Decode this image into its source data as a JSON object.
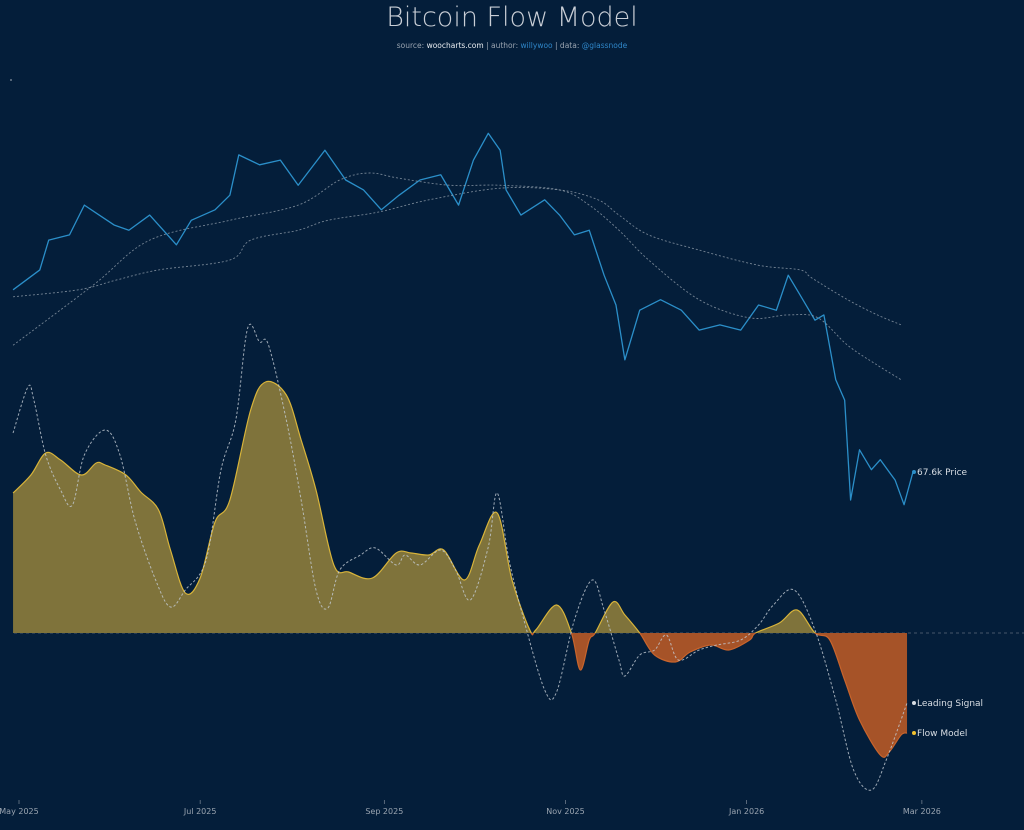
{
  "title": "Bitcoin Flow Model",
  "subtitle": {
    "source_prefix": "source: ",
    "source": "woocharts.com",
    "sep1": " | author: ",
    "author": "willywoo",
    "sep2": " | data: ",
    "data": "@glassnode"
  },
  "colors": {
    "background": "#041e3a",
    "price": "#2b8fc9",
    "ma": "#9aa5b1",
    "flow_positive_fill": "#7f733b",
    "flow_positive_line": "#d8b43a",
    "flow_negative_fill": "#a65328",
    "flow_negative_line": "#c8642c",
    "leading_signal": "#c4ccd4"
  },
  "chart_data": {
    "type": "line",
    "title": "Bitcoin Flow Model",
    "x_type": "date",
    "x_ticks": [
      {
        "date": "2025-05-01",
        "label": "May 2025"
      },
      {
        "date": "2025-07-01",
        "label": "Jul 2025"
      },
      {
        "date": "2025-09-01",
        "label": "Sep 2025"
      },
      {
        "date": "2025-11-01",
        "label": "Nov 2025"
      },
      {
        "date": "2026-01-01",
        "label": "Jan 2026"
      },
      {
        "date": "2026-03-01",
        "label": "Mar 2026"
      }
    ],
    "grid": false,
    "legend": "end-of-line labels, right",
    "price_panel": {
      "unit": "k USD",
      "series": [
        {
          "name": "Price",
          "end_label": "67.6k Price",
          "style": "solid",
          "points": [
            [
              "2025-04-29",
              98.8
            ],
            [
              "2025-05-08",
              102.2
            ],
            [
              "2025-05-11",
              107.3
            ],
            [
              "2025-05-18",
              108.2
            ],
            [
              "2025-05-23",
              113.3
            ],
            [
              "2025-05-28",
              111.6
            ],
            [
              "2025-06-02",
              109.9
            ],
            [
              "2025-06-07",
              109.0
            ],
            [
              "2025-06-14",
              111.6
            ],
            [
              "2025-06-23",
              106.5
            ],
            [
              "2025-06-28",
              110.7
            ],
            [
              "2025-07-06",
              112.5
            ],
            [
              "2025-07-11",
              115.0
            ],
            [
              "2025-07-14",
              121.9
            ],
            [
              "2025-07-21",
              120.2
            ],
            [
              "2025-07-28",
              121.0
            ],
            [
              "2025-08-03",
              116.7
            ],
            [
              "2025-08-12",
              122.7
            ],
            [
              "2025-08-19",
              117.6
            ],
            [
              "2025-08-25",
              115.9
            ],
            [
              "2025-08-31",
              112.5
            ],
            [
              "2025-09-06",
              115.0
            ],
            [
              "2025-09-13",
              117.6
            ],
            [
              "2025-09-20",
              118.5
            ],
            [
              "2025-09-26",
              113.3
            ],
            [
              "2025-10-01",
              121.0
            ],
            [
              "2025-10-06",
              125.6
            ],
            [
              "2025-10-10",
              122.7
            ],
            [
              "2025-10-12",
              115.9
            ],
            [
              "2025-10-17",
              111.6
            ],
            [
              "2025-10-25",
              114.2
            ],
            [
              "2025-10-30",
              111.6
            ],
            [
              "2025-11-04",
              108.2
            ],
            [
              "2025-11-09",
              109.0
            ],
            [
              "2025-11-14",
              101.3
            ],
            [
              "2025-11-18",
              96.2
            ],
            [
              "2025-11-21",
              86.8
            ],
            [
              "2025-11-26",
              95.3
            ],
            [
              "2025-12-03",
              97.1
            ],
            [
              "2025-12-10",
              95.3
            ],
            [
              "2025-12-16",
              91.9
            ],
            [
              "2025-12-23",
              92.8
            ],
            [
              "2025-12-30",
              91.9
            ],
            [
              "2026-01-05",
              96.2
            ],
            [
              "2026-01-11",
              95.3
            ],
            [
              "2026-01-15",
              101.3
            ],
            [
              "2026-01-19",
              97.9
            ],
            [
              "2026-01-24",
              93.6
            ],
            [
              "2026-01-27",
              94.5
            ],
            [
              "2026-01-31",
              83.4
            ],
            [
              "2026-02-03",
              79.9
            ],
            [
              "2026-02-05",
              62.8
            ],
            [
              "2026-02-08",
              71.4
            ],
            [
              "2026-02-12",
              68.0
            ],
            [
              "2026-02-15",
              69.7
            ],
            [
              "2026-02-20",
              66.2
            ],
            [
              "2026-02-23",
              62.0
            ],
            [
              "2026-02-26",
              67.6
            ]
          ]
        },
        {
          "style": "dotted",
          "points": [
            [
              "2025-04-29",
              89.3
            ],
            [
              "2025-05-26",
              99.6
            ],
            [
              "2025-06-14",
              107.3
            ],
            [
              "2025-07-11",
              110.7
            ],
            [
              "2025-08-03",
              113.3
            ],
            [
              "2025-08-17",
              117.6
            ],
            [
              "2025-08-27",
              118.8
            ],
            [
              "2025-09-06",
              117.9
            ],
            [
              "2025-09-23",
              116.7
            ],
            [
              "2025-10-10",
              116.7
            ],
            [
              "2025-10-30",
              115.9
            ],
            [
              "2025-11-09",
              113.3
            ],
            [
              "2025-11-19",
              109.0
            ],
            [
              "2025-11-29",
              103.9
            ],
            [
              "2025-12-16",
              97.1
            ],
            [
              "2026-01-02",
              94.0
            ],
            [
              "2026-01-15",
              94.5
            ],
            [
              "2026-01-25",
              94.0
            ],
            [
              "2026-02-04",
              89.3
            ],
            [
              "2026-02-14",
              85.9
            ],
            [
              "2026-02-22",
              83.4
            ]
          ]
        },
        {
          "style": "dotted",
          "points": [
            [
              "2025-04-29",
              97.6
            ],
            [
              "2025-05-21",
              98.8
            ],
            [
              "2025-06-03",
              100.5
            ],
            [
              "2025-06-17",
              102.2
            ],
            [
              "2025-07-11",
              103.9
            ],
            [
              "2025-07-18",
              107.3
            ],
            [
              "2025-08-03",
              109.0
            ],
            [
              "2025-08-13",
              110.7
            ],
            [
              "2025-08-30",
              112.1
            ],
            [
              "2025-09-16",
              114.2
            ],
            [
              "2025-10-10",
              116.2
            ],
            [
              "2025-10-30",
              115.9
            ],
            [
              "2025-11-12",
              114.2
            ],
            [
              "2025-11-19",
              111.6
            ],
            [
              "2025-11-29",
              108.2
            ],
            [
              "2025-12-16",
              105.6
            ],
            [
              "2026-01-05",
              103.0
            ],
            [
              "2026-01-19",
              102.2
            ],
            [
              "2026-01-23",
              100.8
            ],
            [
              "2026-02-04",
              97.1
            ],
            [
              "2026-02-14",
              94.5
            ],
            [
              "2026-02-22",
              92.8
            ]
          ]
        }
      ]
    },
    "flow_panel": {
      "baseline": 0,
      "series": [
        {
          "name": "Flow Model",
          "end_label": "Flow Model",
          "style": "area",
          "points": [
            [
              "2025-04-29",
              1.4
            ],
            [
              "2025-05-05",
              1.58
            ],
            [
              "2025-05-10",
              1.8
            ],
            [
              "2025-05-15",
              1.73
            ],
            [
              "2025-05-22",
              1.58
            ],
            [
              "2025-05-27",
              1.7
            ],
            [
              "2025-05-30",
              1.68
            ],
            [
              "2025-06-06",
              1.58
            ],
            [
              "2025-06-11",
              1.41
            ],
            [
              "2025-06-17",
              1.23
            ],
            [
              "2025-06-21",
              0.83
            ],
            [
              "2025-06-26",
              0.4
            ],
            [
              "2025-07-01",
              0.55
            ],
            [
              "2025-07-06",
              1.11
            ],
            [
              "2025-07-11",
              1.33
            ],
            [
              "2025-07-18",
              2.23
            ],
            [
              "2025-07-23",
              2.51
            ],
            [
              "2025-07-30",
              2.38
            ],
            [
              "2025-08-04",
              1.93
            ],
            [
              "2025-08-09",
              1.43
            ],
            [
              "2025-08-15",
              0.68
            ],
            [
              "2025-08-20",
              0.61
            ],
            [
              "2025-08-28",
              0.55
            ],
            [
              "2025-09-05",
              0.8
            ],
            [
              "2025-09-10",
              0.8
            ],
            [
              "2025-09-16",
              0.78
            ],
            [
              "2025-09-21",
              0.83
            ],
            [
              "2025-09-28",
              0.53
            ],
            [
              "2025-10-03",
              0.88
            ],
            [
              "2025-10-09",
              1.2
            ],
            [
              "2025-10-14",
              0.53
            ],
            [
              "2025-10-20",
              0.03
            ],
            [
              "2025-10-22",
              0.03
            ],
            [
              "2025-10-29",
              0.28
            ],
            [
              "2025-11-03",
              0.0
            ],
            [
              "2025-11-06",
              -0.37
            ],
            [
              "2025-11-09",
              -0.07
            ],
            [
              "2025-11-11",
              0.0
            ],
            [
              "2025-11-17",
              0.31
            ],
            [
              "2025-11-21",
              0.18
            ],
            [
              "2025-11-26",
              0.0
            ],
            [
              "2025-12-01",
              -0.22
            ],
            [
              "2025-12-08",
              -0.29
            ],
            [
              "2025-12-13",
              -0.19
            ],
            [
              "2025-12-20",
              -0.12
            ],
            [
              "2025-12-26",
              -0.17
            ],
            [
              "2026-01-02",
              -0.07
            ],
            [
              "2026-01-04",
              0.0
            ],
            [
              "2026-01-12",
              0.1
            ],
            [
              "2026-01-18",
              0.23
            ],
            [
              "2026-01-24",
              0.0
            ],
            [
              "2026-01-29",
              -0.07
            ],
            [
              "2026-02-03",
              -0.47
            ],
            [
              "2026-02-08",
              -0.87
            ],
            [
              "2026-02-15",
              -1.22
            ],
            [
              "2026-02-18",
              -1.19
            ],
            [
              "2026-02-22",
              -1.02
            ],
            [
              "2026-02-24",
              -1.0
            ]
          ]
        },
        {
          "name": "Leading Signal",
          "end_label": "Leading Signal",
          "style": "dashed",
          "points": [
            [
              "2025-04-29",
              2.0
            ],
            [
              "2025-05-04",
              2.46
            ],
            [
              "2025-05-06",
              2.33
            ],
            [
              "2025-05-10",
              1.78
            ],
            [
              "2025-05-15",
              1.43
            ],
            [
              "2025-05-19",
              1.28
            ],
            [
              "2025-05-23",
              1.78
            ],
            [
              "2025-05-30",
              2.03
            ],
            [
              "2025-06-04",
              1.78
            ],
            [
              "2025-06-09",
              1.13
            ],
            [
              "2025-06-16",
              0.53
            ],
            [
              "2025-06-21",
              0.26
            ],
            [
              "2025-06-26",
              0.43
            ],
            [
              "2025-07-03",
              0.73
            ],
            [
              "2025-07-08",
              1.63
            ],
            [
              "2025-07-13",
              2.13
            ],
            [
              "2025-07-17",
              3.05
            ],
            [
              "2025-07-21",
              2.91
            ],
            [
              "2025-07-24",
              2.88
            ],
            [
              "2025-07-30",
              2.13
            ],
            [
              "2025-08-04",
              1.33
            ],
            [
              "2025-08-09",
              0.43
            ],
            [
              "2025-08-13",
              0.25
            ],
            [
              "2025-08-17",
              0.63
            ],
            [
              "2025-08-24",
              0.78
            ],
            [
              "2025-08-29",
              0.85
            ],
            [
              "2025-09-05",
              0.68
            ],
            [
              "2025-09-08",
              0.78
            ],
            [
              "2025-09-13",
              0.68
            ],
            [
              "2025-09-20",
              0.83
            ],
            [
              "2025-09-25",
              0.63
            ],
            [
              "2025-09-30",
              0.33
            ],
            [
              "2025-10-06",
              0.86
            ],
            [
              "2025-10-09",
              1.4
            ],
            [
              "2025-10-13",
              0.73
            ],
            [
              "2025-10-18",
              0.13
            ],
            [
              "2025-10-25",
              -0.57
            ],
            [
              "2025-10-29",
              -0.59
            ],
            [
              "2025-11-04",
              0.13
            ],
            [
              "2025-11-10",
              0.53
            ],
            [
              "2025-11-14",
              0.23
            ],
            [
              "2025-11-19",
              -0.27
            ],
            [
              "2025-11-21",
              -0.43
            ],
            [
              "2025-11-26",
              -0.22
            ],
            [
              "2025-12-01",
              -0.17
            ],
            [
              "2025-12-05",
              -0.02
            ],
            [
              "2025-12-09",
              -0.27
            ],
            [
              "2025-12-16",
              -0.17
            ],
            [
              "2025-12-22",
              -0.12
            ],
            [
              "2025-12-30",
              -0.07
            ],
            [
              "2026-01-05",
              0.08
            ],
            [
              "2026-01-10",
              0.28
            ],
            [
              "2026-01-17",
              0.43
            ],
            [
              "2026-01-24",
              0.03
            ],
            [
              "2026-01-31",
              -0.67
            ],
            [
              "2026-02-06",
              -1.37
            ],
            [
              "2026-02-12",
              -1.57
            ],
            [
              "2026-02-17",
              -1.27
            ],
            [
              "2026-02-24",
              -0.7
            ]
          ]
        }
      ]
    }
  }
}
